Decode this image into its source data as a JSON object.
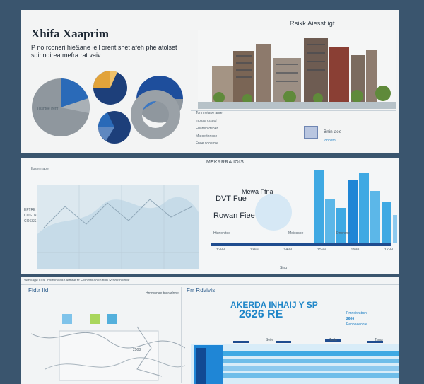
{
  "colors": {
    "background": "#3a556e",
    "navy": "#1d4a8f",
    "royal": "#2a6ab8",
    "gold": "#e2a33a",
    "grey": "#8f979e",
    "light_blue": "#3fa9e3",
    "pale_blue": "#8cc9ee"
  },
  "top_panel": {
    "title": "Xhifa Xaaprim",
    "subtitle_line1": "P no rconeri hie&ane iell orent shet afeh phe atolset",
    "subtitle_line2": "sqinndirea mefra rat vaiv",
    "top_right_label": "Rsikk Aiesst igt",
    "bottom_left_caption": "Tissntoe Irenr",
    "building_caption_lines": [
      "Tonnnetaoe anre",
      "Inossa crsuol",
      "Fuanen deoen",
      "Mteoe thnese",
      "Fnoe sooernle"
    ],
    "right_badge": "Bnin aoe",
    "right_badge_sub": "Ionnetn"
  },
  "middle_panel": {
    "left_header": "Ilosenr aoer",
    "left_labels": [
      "EFTRE",
      "COSTN",
      "COSSS"
    ],
    "chart_title": "MEKRRRA IOIS",
    "inner_label_1": "Mewa Ffna",
    "inner_label_2": "DVT Fue",
    "inner_label_3": "Rowan Fiee",
    "bar_label_1": "Hiunonitee",
    "bar_label_2": "Moiossbe",
    "bar_label_3": "Dnonme",
    "footer_label": "Sinu",
    "tick_labels": [
      "1200",
      "1300",
      "1400",
      "1500",
      "1600",
      "1700"
    ]
  },
  "bottom_panel": {
    "banner": "Venuage Ural Insrfnrteaan lemne tit Felnnwilaoen tinn Rronsfn linek",
    "left_header": "Fldtr Ildi",
    "left_sub": "Hrnmnnae tnsrarlnne",
    "map_label": "2508",
    "right_header": "Frr Rdvivis",
    "big_title": "AKERDA INHAIJ Y SP",
    "big_number": "2626 RE",
    "side_label_1": "Pmnoiwatrsn",
    "side_label_2": "2606",
    "side_label_3": "Peoheeeoote",
    "table_labels": [
      "Seiie",
      "Tulla",
      "Tsnur"
    ]
  }
}
